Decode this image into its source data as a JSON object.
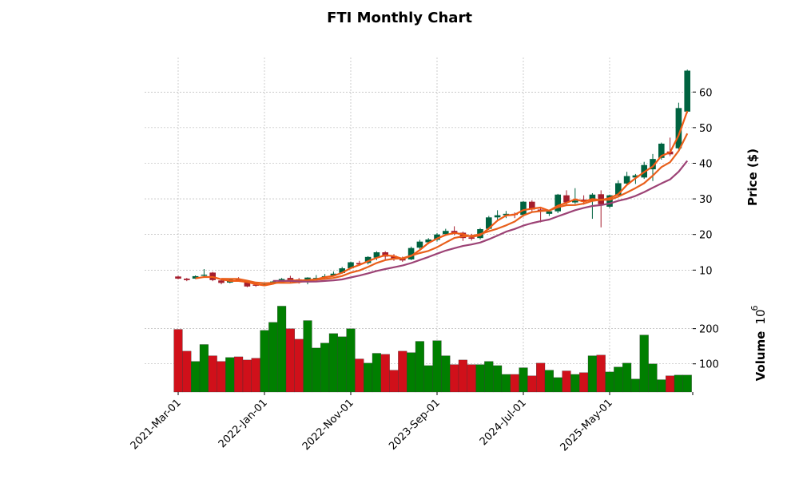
{
  "chart_data": {
    "type": "candlestick",
    "title": "FTI Monthly Chart",
    "ylabel": "Price ($)",
    "volume_label": "Volume",
    "volume_exponent_label": "10",
    "volume_exponent": "6",
    "ylim": [
      2.9,
      69.7
    ],
    "volume_ylim": [
      20,
      290
    ],
    "yticks": [
      10,
      20,
      30,
      40,
      50,
      60
    ],
    "volume_yticks": [
      100,
      200
    ],
    "xtick_labels": [
      {
        "index": 0,
        "label": "2021-Mar-01"
      },
      {
        "index": 10,
        "label": "2022-Jan-01"
      },
      {
        "index": 20,
        "label": "2022-Nov-01"
      },
      {
        "index": 30,
        "label": "2023-Sep-01"
      },
      {
        "index": 40,
        "label": "2024-Jul-01"
      },
      {
        "index": 50,
        "label": "2025-May-01"
      }
    ],
    "colors": {
      "up": "#006340",
      "down": "#a51d2d",
      "vol_up": "#007f00",
      "vol_down": "#d0101a",
      "ma_fast": "#f05a14",
      "ma_mid": "#e8601c",
      "ma_slow": "#9c4275"
    },
    "moving_averages": [
      3,
      6,
      12
    ],
    "grid": true,
    "ohlc": [
      [
        8.2,
        8.4,
        7.4,
        7.6
      ],
      [
        7.6,
        7.8,
        6.9,
        7.2
      ],
      [
        7.6,
        8.5,
        7.5,
        8.3
      ],
      [
        8.4,
        10.3,
        8.2,
        8.7
      ],
      [
        9.3,
        9.5,
        6.9,
        7.2
      ],
      [
        7.1,
        7.3,
        6.0,
        6.4
      ],
      [
        6.5,
        7.6,
        6.3,
        7.3
      ],
      [
        7.3,
        8.0,
        7.0,
        7.2
      ],
      [
        7.0,
        7.2,
        5.2,
        5.4
      ],
      [
        5.9,
        6.1,
        5.3,
        5.6
      ],
      [
        6.0,
        6.3,
        5.7,
        6.1
      ],
      [
        6.2,
        7.0,
        6.0,
        6.8
      ],
      [
        7.0,
        7.8,
        6.6,
        7.5
      ],
      [
        7.8,
        8.4,
        6.6,
        7.1
      ],
      [
        7.4,
        7.8,
        6.2,
        6.6
      ],
      [
        6.7,
        8.0,
        6.0,
        7.9
      ],
      [
        7.5,
        8.6,
        7.2,
        7.8
      ],
      [
        7.9,
        8.9,
        7.6,
        8.3
      ],
      [
        8.5,
        9.6,
        8.2,
        9.0
      ],
      [
        9.2,
        10.9,
        9.0,
        10.5
      ],
      [
        10.5,
        12.4,
        10.3,
        12.2
      ],
      [
        12.0,
        12.6,
        11.2,
        11.6
      ],
      [
        12.0,
        13.9,
        11.6,
        13.7
      ],
      [
        13.5,
        15.3,
        12.8,
        15.0
      ],
      [
        15.0,
        15.3,
        12.9,
        13.8
      ],
      [
        14.0,
        14.5,
        12.6,
        13.0
      ],
      [
        13.2,
        13.8,
        12.3,
        12.7
      ],
      [
        13.0,
        16.6,
        12.8,
        16.2
      ],
      [
        16.3,
        18.5,
        15.8,
        18.0
      ],
      [
        17.8,
        19.0,
        17.3,
        18.6
      ],
      [
        18.5,
        20.4,
        18.0,
        20.0
      ],
      [
        20.1,
        21.6,
        19.6,
        21.0
      ],
      [
        21.0,
        22.3,
        19.8,
        20.3
      ],
      [
        20.5,
        20.8,
        18.2,
        19.0
      ],
      [
        19.2,
        20.2,
        18.3,
        18.8
      ],
      [
        19.0,
        21.8,
        18.6,
        21.5
      ],
      [
        21.6,
        25.2,
        21.3,
        24.8
      ],
      [
        24.8,
        26.8,
        24.2,
        25.4
      ],
      [
        25.4,
        26.6,
        24.6,
        25.8
      ],
      [
        25.8,
        26.2,
        24.6,
        25.5
      ],
      [
        25.5,
        29.4,
        25.0,
        29.2
      ],
      [
        29.2,
        29.6,
        26.4,
        27.0
      ],
      [
        27.0,
        27.6,
        23.4,
        26.5
      ],
      [
        25.8,
        27.0,
        25.2,
        26.5
      ],
      [
        26.5,
        31.4,
        26.0,
        31.2
      ],
      [
        31.0,
        32.4,
        28.0,
        29.0
      ],
      [
        29.0,
        33.0,
        28.6,
        29.5
      ],
      [
        29.8,
        31.0,
        28.4,
        29.2
      ],
      [
        29.5,
        31.6,
        24.4,
        31.2
      ],
      [
        31.3,
        32.4,
        22.0,
        28.5
      ],
      [
        27.8,
        31.2,
        27.4,
        31.0
      ],
      [
        31.0,
        35.2,
        30.6,
        34.4
      ],
      [
        34.3,
        37.6,
        33.8,
        36.4
      ],
      [
        36.0,
        37.0,
        34.2,
        36.6
      ],
      [
        36.0,
        40.4,
        35.6,
        39.5
      ],
      [
        38.3,
        42.6,
        35.0,
        41.2
      ],
      [
        41.5,
        45.8,
        41.0,
        45.5
      ],
      [
        43.3,
        47.2,
        42.0,
        42.5
      ],
      [
        44.2,
        57.0,
        43.8,
        55.5
      ],
      [
        54.5,
        66.3,
        54.0,
        66.0
      ]
    ],
    "volume": [
      198,
      136,
      107,
      155,
      123,
      107,
      118,
      120,
      111,
      116,
      195,
      218,
      264,
      200,
      170,
      223,
      145,
      159,
      186,
      177,
      200,
      114,
      102,
      130,
      127,
      82,
      136,
      132,
      164,
      95,
      166,
      123,
      98,
      111,
      98,
      98,
      107,
      95,
      70,
      70,
      89,
      66,
      102,
      82,
      61,
      80,
      70,
      75,
      123,
      125,
      77,
      91,
      102,
      57,
      182,
      100,
      55,
      66,
      68,
      68
    ]
  }
}
